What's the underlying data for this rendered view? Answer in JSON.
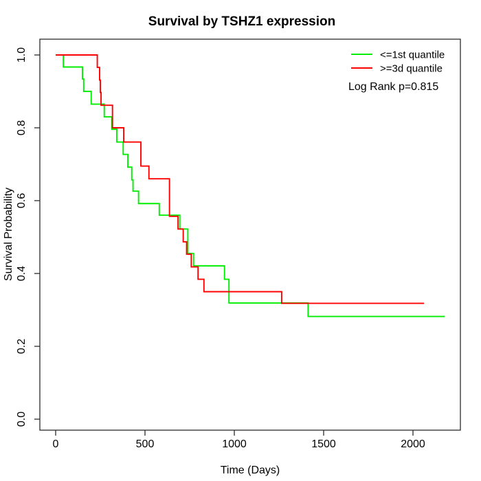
{
  "chart_data": {
    "type": "line",
    "subtype": "kaplan-meier-step",
    "title": "Survival by TSHZ1 expression",
    "xlabel": "Time (Days)",
    "ylabel": "Survival Probability",
    "xlim": [
      0,
      2330
    ],
    "ylim": [
      0,
      1
    ],
    "x_ticks": [
      0,
      500,
      1000,
      1500,
      2000
    ],
    "y_ticks": [
      0.0,
      0.2,
      0.4,
      0.6,
      0.8,
      1.0
    ],
    "grid": false,
    "background": "#ffffff",
    "axis_color": "#2b2b2b",
    "legend": {
      "position": "top-right",
      "entries": [
        {
          "label": "<=1st quantile",
          "color": "#00ee00"
        },
        {
          "label": ">=3d quantile",
          "color": "#ff0000"
        }
      ],
      "annotation": "Log Rank p=0.815"
    },
    "series": [
      {
        "name": "<=1st quantile",
        "color": "#00ee00",
        "end_time": 2178,
        "points": [
          [
            0,
            1.0
          ],
          [
            43,
            0.967
          ],
          [
            150,
            0.934
          ],
          [
            157,
            0.9
          ],
          [
            199,
            0.865
          ],
          [
            272,
            0.83
          ],
          [
            314,
            0.796
          ],
          [
            342,
            0.761
          ],
          [
            378,
            0.727
          ],
          [
            404,
            0.692
          ],
          [
            426,
            0.657
          ],
          [
            433,
            0.626
          ],
          [
            464,
            0.592
          ],
          [
            580,
            0.56
          ],
          [
            695,
            0.522
          ],
          [
            740,
            0.455
          ],
          [
            772,
            0.421
          ],
          [
            945,
            0.384
          ],
          [
            970,
            0.319
          ],
          [
            1413,
            0.282
          ]
        ]
      },
      {
        "name": ">=3d quantile",
        "color": "#ff0000",
        "end_time": 2062,
        "points": [
          [
            0,
            1.0
          ],
          [
            233,
            0.966
          ],
          [
            246,
            0.931
          ],
          [
            250,
            0.897
          ],
          [
            254,
            0.862
          ],
          [
            318,
            0.8
          ],
          [
            381,
            0.761
          ],
          [
            477,
            0.695
          ],
          [
            522,
            0.66
          ],
          [
            637,
            0.557
          ],
          [
            685,
            0.522
          ],
          [
            714,
            0.487
          ],
          [
            733,
            0.453
          ],
          [
            759,
            0.418
          ],
          [
            797,
            0.384
          ],
          [
            830,
            0.35
          ],
          [
            1265,
            0.318
          ]
        ]
      }
    ]
  }
}
